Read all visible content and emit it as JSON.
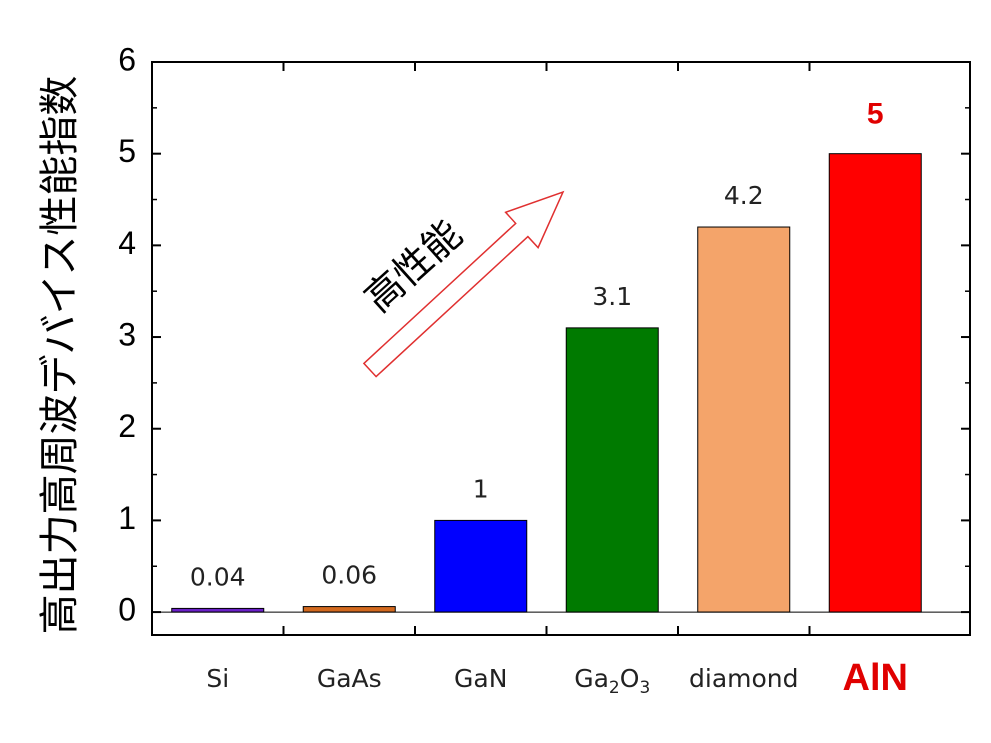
{
  "chart_data": {
    "type": "bar",
    "title": "",
    "xlabel": "",
    "ylabel": "高出力高周波デバイス性能指数",
    "ylim": [
      -0.25,
      6
    ],
    "yticks": [
      0,
      1,
      2,
      3,
      4,
      5,
      6
    ],
    "categories": [
      {
        "label": "Si",
        "sub": "",
        "tail": ""
      },
      {
        "label": "GaAs",
        "sub": "",
        "tail": ""
      },
      {
        "label": "GaN",
        "sub": "",
        "tail": ""
      },
      {
        "label": "Ga",
        "sub": "2",
        "tail": "O",
        "sub2": "3"
      },
      {
        "label": "diamond",
        "sub": "",
        "tail": ""
      },
      {
        "label": "AlN",
        "sub": "",
        "tail": ""
      }
    ],
    "values": [
      0.04,
      0.06,
      1,
      3.1,
      4.2,
      5
    ],
    "value_labels": [
      "0.04",
      "0.06",
      "1",
      "3.1",
      "4.2",
      "5"
    ],
    "colors": [
      "#6a1fc8",
      "#d2691e",
      "#0000ff",
      "#007a00",
      "#f4a46a",
      "#ff0000"
    ],
    "highlight_index": 5,
    "highlight_color": "#e00000",
    "grid": false,
    "annotation": {
      "text": "高性能",
      "arrow_color": "#e03030"
    }
  }
}
